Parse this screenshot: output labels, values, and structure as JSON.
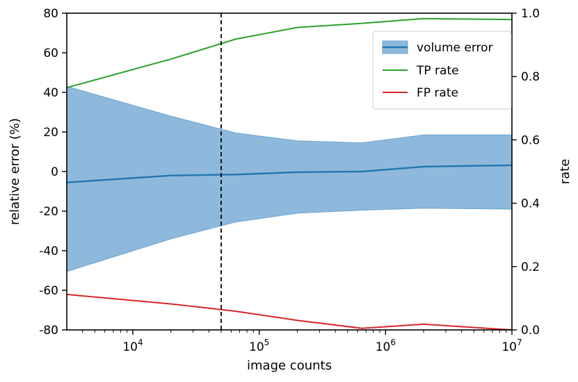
{
  "chart_data": {
    "type": "line",
    "xscale": "log",
    "xlim": [
      3000,
      10000000
    ],
    "xlabel": "image counts",
    "x_ticks": [
      {
        "value": 10000,
        "base": "10",
        "exp": "4"
      },
      {
        "value": 100000,
        "base": "10",
        "exp": "5"
      },
      {
        "value": 1000000,
        "base": "10",
        "exp": "6"
      },
      {
        "value": 10000000,
        "base": "10",
        "exp": "7"
      }
    ],
    "left_axis": {
      "label": "relative error (%)",
      "ylim": [
        -80,
        80
      ],
      "ticks": [
        -80,
        -60,
        -40,
        -20,
        0,
        20,
        40,
        60,
        80
      ],
      "tick_labels": [
        "-80",
        "-60",
        "-40",
        "-20",
        "0",
        "20",
        "40",
        "60",
        "80"
      ]
    },
    "right_axis": {
      "label": "rate",
      "ylim": [
        0,
        1
      ],
      "ticks": [
        0,
        0.2,
        0.4,
        0.6,
        0.8,
        1.0
      ],
      "tick_labels": [
        "0.0",
        "0.2",
        "0.4",
        "0.6",
        "0.8",
        "1.0"
      ]
    },
    "x": [
      3000,
      20000,
      65000,
      200000,
      650000,
      2000000,
      10000000
    ],
    "series": [
      {
        "name": "volume error",
        "axis": "left",
        "color": "#1f77b4",
        "fill_color": "#8fb9dc",
        "mean": [
          -5.5,
          -2.0,
          -1.5,
          -0.3,
          0.0,
          2.5,
          3.2
        ],
        "upper": [
          43,
          28,
          19.5,
          15.5,
          14.5,
          18.5,
          18.5
        ],
        "lower": [
          -50.5,
          -34,
          -25.5,
          -21,
          -19.5,
          -18.5,
          -19
        ]
      },
      {
        "name": "TP rate",
        "axis": "right",
        "color": "#2ca02c",
        "values": [
          0.765,
          0.855,
          0.918,
          0.955,
          0.968,
          0.983,
          0.98
        ]
      },
      {
        "name": "FP rate",
        "axis": "right",
        "color": "#d62728",
        "values": [
          0.112,
          0.082,
          0.059,
          0.03,
          0.005,
          0.018,
          0.0
        ]
      }
    ],
    "vline": {
      "x": 50000,
      "style": "dashed",
      "color": "#000000"
    },
    "legend": {
      "position": "top-right",
      "entries": [
        "volume error",
        "TP rate",
        "FP rate"
      ]
    }
  }
}
